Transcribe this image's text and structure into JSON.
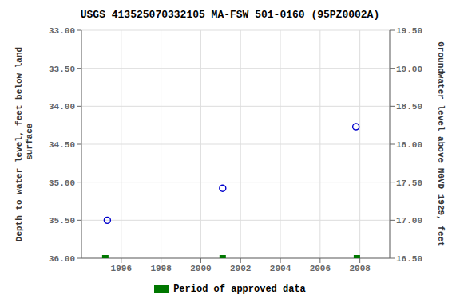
{
  "chart_data": {
    "type": "scatter",
    "title": "USGS 413525070332105 MA-FSW  501-0160 (95PZ0002A)",
    "ylabel": "Depth to water level, feet below land\n surface",
    "y2label": "Groundwater level above NGVD 1929, feet",
    "xlim": [
      1994.0,
      2009.5
    ],
    "xticks": [
      1996,
      1998,
      2000,
      2002,
      2004,
      2006,
      2008
    ],
    "ylim": [
      36.0,
      33.0
    ],
    "yticks": [
      {
        "value": 33.0,
        "label": "33.00"
      },
      {
        "value": 33.5,
        "label": "33.50"
      },
      {
        "value": 34.0,
        "label": "34.00"
      },
      {
        "value": 34.5,
        "label": "34.50"
      },
      {
        "value": 35.0,
        "label": "35.00"
      },
      {
        "value": 35.5,
        "label": "35.50"
      },
      {
        "value": 36.0,
        "label": "36.00"
      }
    ],
    "y2lim": [
      16.5,
      19.5
    ],
    "y2ticks": [
      {
        "value": 19.5,
        "label": "19.50"
      },
      {
        "value": 19.0,
        "label": "19.00"
      },
      {
        "value": 18.5,
        "label": "18.50"
      },
      {
        "value": 18.0,
        "label": "18.00"
      },
      {
        "value": 17.5,
        "label": "17.50"
      },
      {
        "value": 17.0,
        "label": "17.00"
      },
      {
        "value": 16.5,
        "label": "16.50"
      }
    ],
    "grid": true,
    "legend": "bottom",
    "series": [
      {
        "color": "#0000cc",
        "marker": "open_circle",
        "x": [
          1995.3,
          2001.1,
          2007.8
        ],
        "values": [
          35.5,
          35.08,
          34.27
        ]
      },
      {
        "name": "Period of approved data",
        "color": "#007700",
        "marker": "square",
        "x": [
          1995.2,
          2001.1,
          2007.85
        ],
        "values": [
          36.0,
          36.0,
          36.0
        ]
      }
    ]
  }
}
